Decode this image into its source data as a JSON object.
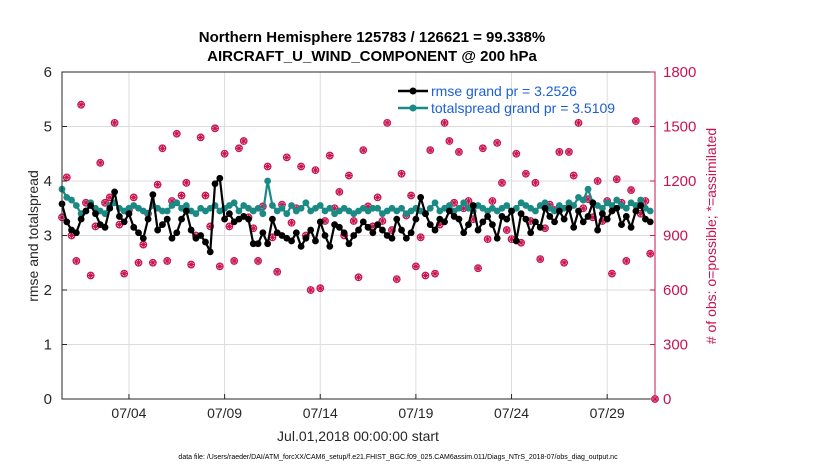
{
  "title_line1": "Northern Hemisphere 125783 / 126621 = 99.338%",
  "title_line2": "AIRCRAFT_U_WIND_COMPONENT @ 200 hPa",
  "footer": "data file: /Users/raeder/DAI/ATM_forcXX/CAM6_setup/f.e21.FHIST_BGC.f09_025.CAM6assim.011/Diags_NTrS_2018-07/obs_diag_output.nc",
  "chart_data": {
    "type": "line",
    "title": "Northern Hemisphere 125783 / 126621 = 99.338%",
    "subtitle": "AIRCRAFT_U_WIND_COMPONENT @ 200 hPa",
    "xlabel": "Jul.01,2018 00:00:00 start",
    "ylabel": "rmse and totalspread",
    "ylabel_right": "# of obs: o=possible; *=assimilated",
    "xlim": [
      0.5,
      31.5
    ],
    "ylim": [
      0,
      6
    ],
    "ylim_right": [
      0,
      1800
    ],
    "x_ticks": [
      4,
      9,
      14,
      19,
      24,
      29
    ],
    "x_tick_labels": [
      "07/04",
      "07/09",
      "07/14",
      "07/19",
      "07/24",
      "07/29"
    ],
    "y_ticks": [
      0,
      1,
      2,
      3,
      4,
      5,
      6
    ],
    "y_tick_labels": [
      "0",
      "1",
      "2",
      "3",
      "4",
      "5",
      "6"
    ],
    "y_right_ticks": [
      0,
      300,
      600,
      900,
      1200,
      1500,
      1800
    ],
    "y_right_tick_labels": [
      "0",
      "300",
      "600",
      "900",
      "1200",
      "1500",
      "1800"
    ],
    "grid": true,
    "legend_position": "top-right",
    "colors": {
      "rmse": "#000000",
      "spread": "#1b8a85",
      "obs": "#c8144f",
      "legend_text": "#1d5fd6",
      "grid": "#dcdcdc"
    },
    "series": [
      {
        "name": "rmse",
        "legend": "rmse grand pr = 3.2526",
        "x": [
          0.5,
          0.75,
          1.0,
          1.25,
          1.5,
          1.75,
          2.0,
          2.25,
          2.5,
          2.75,
          3.0,
          3.25,
          3.5,
          3.75,
          4.0,
          4.25,
          4.5,
          4.75,
          5.0,
          5.25,
          5.5,
          5.75,
          6.0,
          6.25,
          6.5,
          6.75,
          7.0,
          7.25,
          7.5,
          7.75,
          8.0,
          8.25,
          8.5,
          8.75,
          9.0,
          9.25,
          9.5,
          9.75,
          10.0,
          10.25,
          10.5,
          10.75,
          11.0,
          11.25,
          11.5,
          11.75,
          12.0,
          12.25,
          12.5,
          12.75,
          13.0,
          13.25,
          13.5,
          13.75,
          14.0,
          14.25,
          14.5,
          14.75,
          15.0,
          15.25,
          15.5,
          15.75,
          16.0,
          16.25,
          16.5,
          16.75,
          17.0,
          17.25,
          17.5,
          17.75,
          18.0,
          18.25,
          18.5,
          18.75,
          19.0,
          19.25,
          19.5,
          19.75,
          20.0,
          20.25,
          20.5,
          20.75,
          21.0,
          21.25,
          21.5,
          21.75,
          22.0,
          22.25,
          22.5,
          22.75,
          23.0,
          23.25,
          23.5,
          23.75,
          24.0,
          24.25,
          24.5,
          24.75,
          25.0,
          25.25,
          25.5,
          25.75,
          26.0,
          26.25,
          26.5,
          26.75,
          27.0,
          27.25,
          27.5,
          27.75,
          28.0,
          28.25,
          28.5,
          28.75,
          29.0,
          29.25,
          29.5,
          29.75,
          30.0,
          30.25,
          30.5,
          30.75,
          31.0,
          31.25
        ],
        "values": [
          3.58,
          3.25,
          3.1,
          3.05,
          3.3,
          3.45,
          3.55,
          3.4,
          3.2,
          3.15,
          3.5,
          3.8,
          3.35,
          3.25,
          3.4,
          3.15,
          3.05,
          2.95,
          3.3,
          3.75,
          3.1,
          3.2,
          3.3,
          2.95,
          3.05,
          3.3,
          3.45,
          3.1,
          2.95,
          3.0,
          2.88,
          2.7,
          3.95,
          4.05,
          3.3,
          3.4,
          3.25,
          3.3,
          3.35,
          3.3,
          2.85,
          2.85,
          3.05,
          2.85,
          3.3,
          3.05,
          3.0,
          2.95,
          2.9,
          3.05,
          2.8,
          2.95,
          3.1,
          2.9,
          3.25,
          3.0,
          2.8,
          3.2,
          3.15,
          3.05,
          2.85,
          3.0,
          3.1,
          3.25,
          3.15,
          3.05,
          3.2,
          3.1,
          3.0,
          2.95,
          3.3,
          3.1,
          2.95,
          3.05,
          3.3,
          3.7,
          3.4,
          3.2,
          3.1,
          3.3,
          3.25,
          3.45,
          3.35,
          3.3,
          3.05,
          3.2,
          3.55,
          3.1,
          3.25,
          3.35,
          3.2,
          2.95,
          3.35,
          3.3,
          3.45,
          2.9,
          3.4,
          3.3,
          3.05,
          3.25,
          3.15,
          3.5,
          3.35,
          3.25,
          3.45,
          3.3,
          3.5,
          3.15,
          3.45,
          3.25,
          3.35,
          3.6,
          3.1,
          3.4,
          3.3,
          3.45,
          3.5,
          3.2,
          3.35,
          3.15,
          3.45,
          3.55,
          3.3,
          3.25
        ]
      },
      {
        "name": "totalspread",
        "legend": "totalspread grand pr = 3.5109",
        "x": [
          0.5,
          0.75,
          1.0,
          1.25,
          1.5,
          1.75,
          2.0,
          2.25,
          2.5,
          2.75,
          3.0,
          3.25,
          3.5,
          3.75,
          4.0,
          4.25,
          4.5,
          4.75,
          5.0,
          5.25,
          5.5,
          5.75,
          6.0,
          6.25,
          6.5,
          6.75,
          7.0,
          7.25,
          7.5,
          7.75,
          8.0,
          8.25,
          8.5,
          8.75,
          9.0,
          9.25,
          9.5,
          9.75,
          10.0,
          10.25,
          10.5,
          10.75,
          11.0,
          11.25,
          11.5,
          11.75,
          12.0,
          12.25,
          12.5,
          12.75,
          13.0,
          13.25,
          13.5,
          13.75,
          14.0,
          14.25,
          14.5,
          14.75,
          15.0,
          15.25,
          15.5,
          15.75,
          16.0,
          16.25,
          16.5,
          16.75,
          17.0,
          17.25,
          17.5,
          17.75,
          18.0,
          18.25,
          18.5,
          18.75,
          19.0,
          19.25,
          19.5,
          19.75,
          20.0,
          20.25,
          20.5,
          20.75,
          21.0,
          21.25,
          21.5,
          21.75,
          22.0,
          22.25,
          22.5,
          22.75,
          23.0,
          23.25,
          23.5,
          23.75,
          24.0,
          24.25,
          24.5,
          24.75,
          25.0,
          25.25,
          25.5,
          25.75,
          26.0,
          26.25,
          26.5,
          26.75,
          27.0,
          27.25,
          27.5,
          27.75,
          28.0,
          28.25,
          28.5,
          28.75,
          29.0,
          29.25,
          29.5,
          29.75,
          30.0,
          30.25,
          30.5,
          30.75,
          31.0,
          31.25
        ],
        "values": [
          3.85,
          3.7,
          3.65,
          3.55,
          3.4,
          3.45,
          3.6,
          3.5,
          3.45,
          3.4,
          3.55,
          3.6,
          3.5,
          3.45,
          3.5,
          3.55,
          3.5,
          3.45,
          3.4,
          3.55,
          3.5,
          3.45,
          3.45,
          3.55,
          3.6,
          3.5,
          3.55,
          3.45,
          3.4,
          3.5,
          3.45,
          3.5,
          3.55,
          3.45,
          3.5,
          3.55,
          3.6,
          3.45,
          3.55,
          3.5,
          3.45,
          3.5,
          3.4,
          4.0,
          3.55,
          3.45,
          3.5,
          3.4,
          3.55,
          3.45,
          3.5,
          3.6,
          3.45,
          3.5,
          3.55,
          3.45,
          3.5,
          3.4,
          3.45,
          3.5,
          3.45,
          3.4,
          3.45,
          3.5,
          3.45,
          3.5,
          3.5,
          3.4,
          3.45,
          3.5,
          3.45,
          3.5,
          3.4,
          3.45,
          3.5,
          3.45,
          3.4,
          3.5,
          3.6,
          3.45,
          3.5,
          3.55,
          3.45,
          3.5,
          3.6,
          3.5,
          3.45,
          3.55,
          3.5,
          3.45,
          3.5,
          3.45,
          3.5,
          3.55,
          3.45,
          3.5,
          3.6,
          3.55,
          3.5,
          3.45,
          3.55,
          3.6,
          3.5,
          3.45,
          3.55,
          3.5,
          3.6,
          3.55,
          3.7,
          3.65,
          3.85,
          3.6,
          3.55,
          3.5,
          3.6,
          3.55,
          3.65,
          3.55,
          3.5,
          3.6,
          3.55,
          3.65,
          3.5,
          3.45
        ]
      },
      {
        "name": "obs_count",
        "axis": "right",
        "marker": "o*",
        "x": [
          0.5,
          0.75,
          1.0,
          1.25,
          1.5,
          1.75,
          2.0,
          2.25,
          2.5,
          2.75,
          3.0,
          3.25,
          3.5,
          3.75,
          4.0,
          4.25,
          4.5,
          4.75,
          5.0,
          5.25,
          5.5,
          5.75,
          6.0,
          6.25,
          6.5,
          6.75,
          7.0,
          7.25,
          7.5,
          7.75,
          8.0,
          8.25,
          8.5,
          8.75,
          9.0,
          9.25,
          9.5,
          9.75,
          10.0,
          10.25,
          10.5,
          10.75,
          11.0,
          11.25,
          11.5,
          11.75,
          12.0,
          12.25,
          12.5,
          12.75,
          13.0,
          13.25,
          13.5,
          13.75,
          14.0,
          14.25,
          14.5,
          14.75,
          15.0,
          15.25,
          15.5,
          15.75,
          16.0,
          16.25,
          16.5,
          16.75,
          17.0,
          17.25,
          17.5,
          17.75,
          18.0,
          18.25,
          18.5,
          18.75,
          19.0,
          19.25,
          19.5,
          19.75,
          20.0,
          20.25,
          20.5,
          20.75,
          21.0,
          21.25,
          21.5,
          21.75,
          22.0,
          22.25,
          22.5,
          22.75,
          23.0,
          23.25,
          23.5,
          23.75,
          24.0,
          24.25,
          24.5,
          24.75,
          25.0,
          25.25,
          25.5,
          25.75,
          26.0,
          26.25,
          26.5,
          26.75,
          27.0,
          27.25,
          27.5,
          27.75,
          28.0,
          28.25,
          28.5,
          28.75,
          29.0,
          29.25,
          29.5,
          29.75,
          30.0,
          30.25,
          30.5,
          30.75,
          31.0,
          31.25,
          31.5
        ],
        "values": [
          1000,
          1220,
          900,
          760,
          1620,
          1080,
          680,
          950,
          1300,
          1080,
          1110,
          1520,
          960,
          690,
          1040,
          1110,
          750,
          850,
          1020,
          750,
          1180,
          1380,
          760,
          1090,
          1460,
          1120,
          1190,
          740,
          900,
          1440,
          1120,
          950,
          1490,
          730,
          1350,
          950,
          760,
          1380,
          1420,
          1000,
          940,
          760,
          1060,
          1280,
          890,
          700,
          1070,
          1330,
          970,
          1050,
          1280,
          900,
          600,
          1260,
          610,
          980,
          1340,
          1050,
          1140,
          900,
          1230,
          980,
          670,
          1370,
          1060,
          950,
          1110,
          980,
          1520,
          930,
          660,
          1240,
          1010,
          1120,
          730,
          890,
          680,
          1370,
          690,
          960,
          1520,
          1420,
          1080,
          1360,
          1050,
          1090,
          990,
          720,
          1380,
          880,
          1090,
          1410,
          1190,
          930,
          880,
          1350,
          860,
          1240,
          980,
          1190,
          770,
          940,
          1070,
          1040,
          1360,
          750,
          1360,
          1230,
          1520,
          1050,
          1100,
          1000,
          1200,
          980,
          1090,
          690,
          1210,
          1080,
          760,
          1150,
          1530,
          1020,
          1090,
          800,
          0
        ]
      }
    ]
  }
}
